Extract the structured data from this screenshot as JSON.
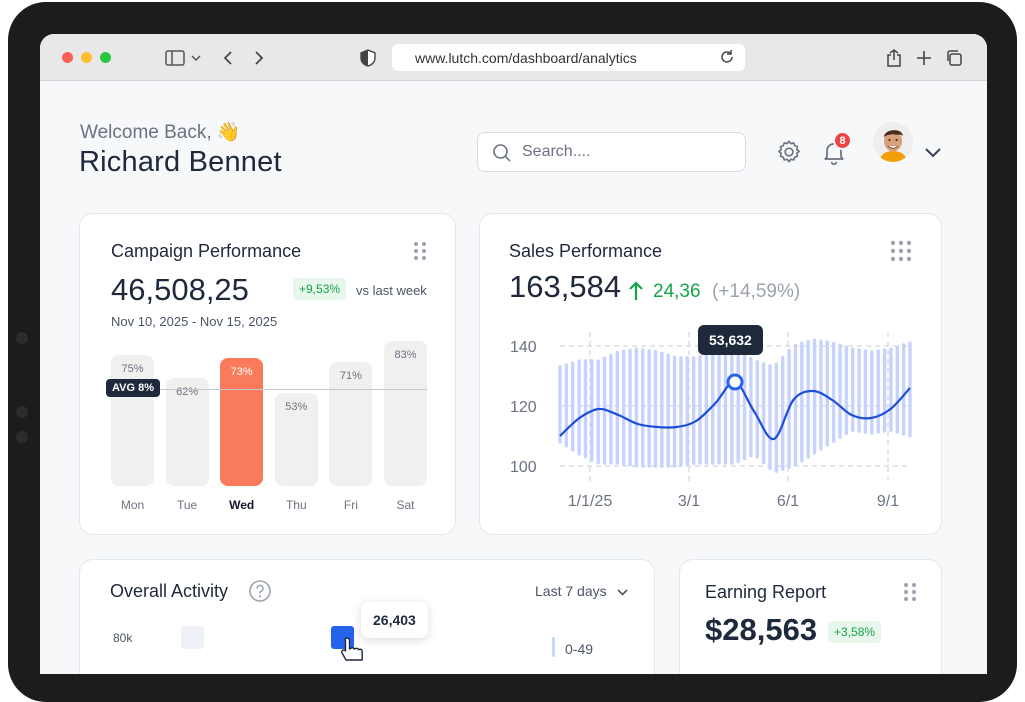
{
  "browser": {
    "url": "www.lutch.com/dashboard/analytics"
  },
  "header": {
    "welcome": "Welcome Back, 👋",
    "user_name": "Richard Bennet",
    "search_placeholder": "Search....",
    "notification_count": "8"
  },
  "campaign": {
    "title": "Campaign Performance",
    "value": "46,508,25",
    "change": "+9,53%",
    "compare": "vs last week",
    "date_range": "Nov 10, 2025 - Nov 15, 2025",
    "avg_label": "AVG 8%",
    "chart_data": {
      "type": "bar",
      "categories": [
        "Mon",
        "Tue",
        "Wed",
        "Thu",
        "Fri",
        "Sat"
      ],
      "values": [
        75,
        62,
        73,
        53,
        71,
        83
      ],
      "value_labels": [
        "75%",
        "62%",
        "73%",
        "53%",
        "71%",
        "83%"
      ],
      "highlighted": "Wed",
      "ylim": [
        0,
        100
      ]
    }
  },
  "sales": {
    "title": "Sales Performance",
    "value": "163,584",
    "change": "24,36",
    "change_pct": "(+14,59%)",
    "tooltip": "53,632",
    "chart_data": {
      "type": "line",
      "x_ticks": [
        "1/1/25",
        "3/1",
        "6/1",
        "9/1"
      ],
      "y_ticks": [
        "140",
        "120",
        "100"
      ],
      "ylim": [
        96,
        146
      ],
      "x_start": "1/1/25",
      "x_end": "10/1/25",
      "series": [
        {
          "name": "Sales",
          "values": [
            110,
            116,
            119,
            117,
            114,
            113,
            113,
            115,
            121,
            128,
            118,
            109,
            122,
            125,
            122,
            117,
            116,
            119,
            126
          ]
        }
      ],
      "band_top": [
        133,
        135,
        135,
        138,
        139,
        138,
        136,
        136,
        138,
        140,
        135,
        133,
        140,
        142,
        141,
        139,
        138,
        139,
        141
      ],
      "band_bottom": [
        108,
        104,
        101,
        101,
        100,
        100,
        100,
        101,
        101,
        101,
        104,
        98,
        100,
        104,
        108,
        112,
        111,
        112,
        110
      ]
    }
  },
  "activity": {
    "title": "Overall Activity",
    "period": "Last 7 days",
    "y_label": "80k",
    "tooltip": "26,403",
    "legend_first": "0-49"
  },
  "earning": {
    "title": "Earning Report",
    "value": "$28,563",
    "change": "+3,58%"
  }
}
